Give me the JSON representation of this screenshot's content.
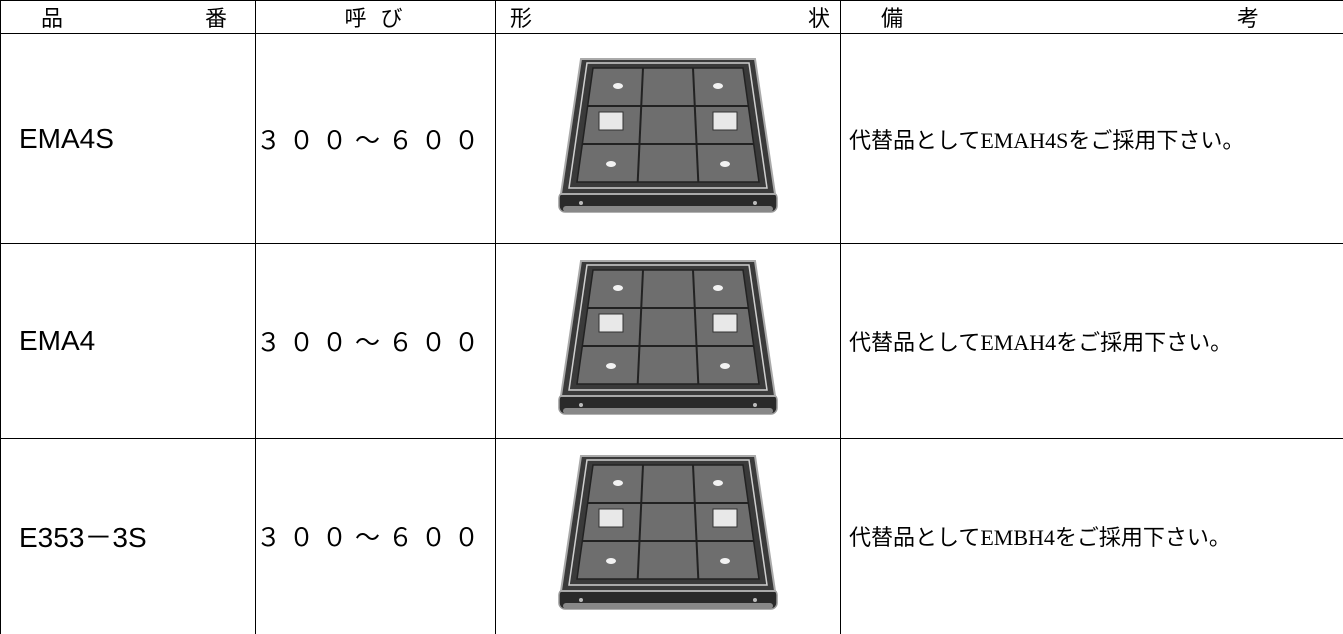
{
  "header": [
    "品番",
    "呼び",
    "形状",
    "備考"
  ],
  "rows": [
    {
      "name": "EMA4S",
      "size": "３００～６００",
      "remark": "代替品としてEMAH4Sをご採用下さい。"
    },
    {
      "name": "EMA4",
      "size": "３００～６００",
      "remark": "代替品としてEMAH4をご採用下さい。"
    },
    {
      "name": "E353－3S",
      "size": "３００～６００",
      "remark": "代替品としてEMBH4をご採用下さい。"
    }
  ]
}
